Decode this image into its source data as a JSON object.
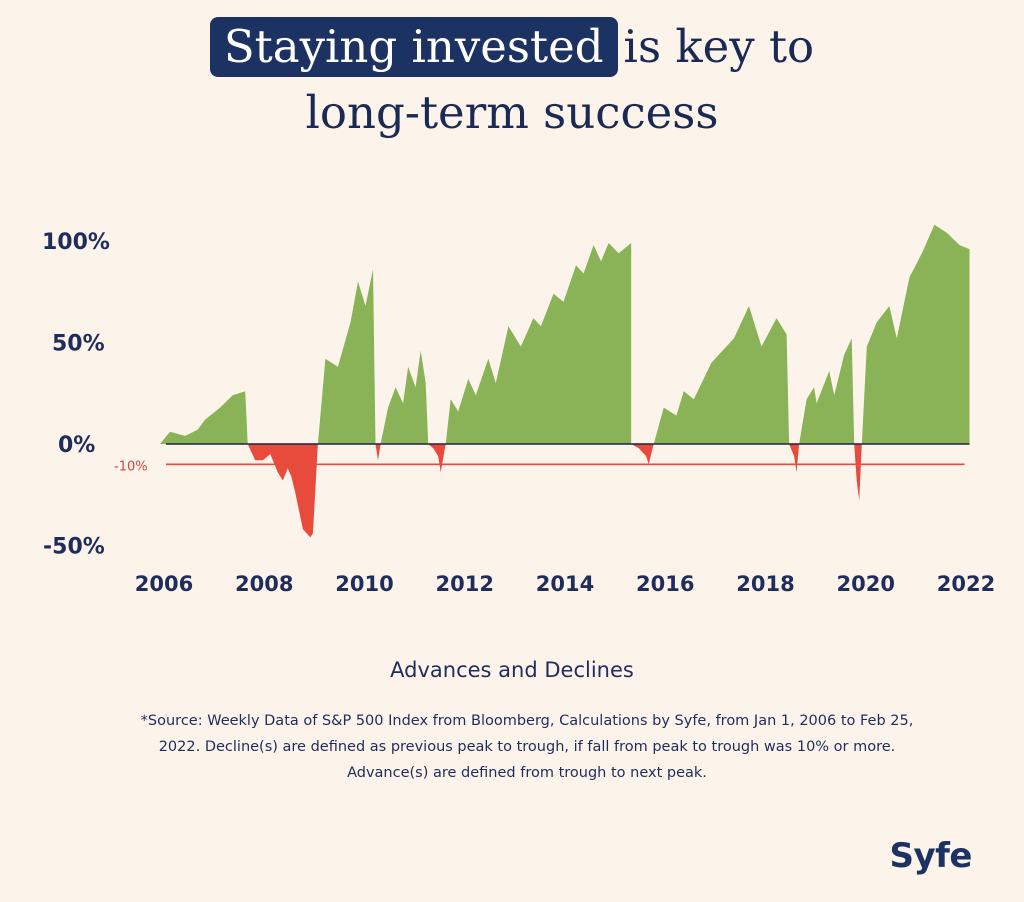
{
  "title": {
    "highlight": "Staying invested",
    "rest": "is key to",
    "line2": "long-term success"
  },
  "chart_data": {
    "type": "area",
    "title": "Staying invested is key to long-term success",
    "xlabel": "Advances and Declines",
    "ylabel": "",
    "xlim": [
      2006,
      2022
    ],
    "ylim": [
      -50,
      100
    ],
    "x_ticks": [
      "2006",
      "2008",
      "2010",
      "2012",
      "2014",
      "2016",
      "2018",
      "2020",
      "2022"
    ],
    "y_ticks": [
      "100%",
      "50%",
      "0%",
      "-50%"
    ],
    "reference_line": {
      "y": -10,
      "label": "-10%",
      "color": "#e84b3c"
    },
    "series": [
      {
        "name": "Advances",
        "color": "#89b356",
        "segments": [
          {
            "x": [
              2006.0,
              2006.2,
              2006.5,
              2006.75,
              2006.9,
              2007.2,
              2007.45,
              2007.7,
              2007.75
            ],
            "y": [
              0,
              6,
              4,
              7,
              12,
              18,
              24,
              26,
              0
            ]
          },
          {
            "x": [
              2009.15,
              2009.3,
              2009.55,
              2009.8,
              2009.95,
              2010.1,
              2010.25,
              2010.3
            ],
            "y": [
              0,
              42,
              38,
              60,
              80,
              68,
              86,
              0
            ]
          },
          {
            "x": [
              2010.4,
              2010.55,
              2010.7,
              2010.85,
              2010.95,
              2011.1,
              2011.2,
              2011.3,
              2011.35
            ],
            "y": [
              0,
              18,
              28,
              20,
              38,
              28,
              46,
              30,
              0
            ]
          },
          {
            "x": [
              2011.7,
              2011.8,
              2011.95,
              2012.15,
              2012.3,
              2012.55,
              2012.7,
              2012.95,
              2013.2,
              2013.45,
              2013.6,
              2013.85,
              2014.05,
              2014.3,
              2014.45,
              2014.65,
              2014.8,
              2014.95,
              2015.15,
              2015.4,
              2015.4
            ],
            "y": [
              0,
              22,
              16,
              32,
              24,
              42,
              30,
              58,
              48,
              62,
              58,
              74,
              70,
              88,
              84,
              98,
              90,
              99,
              94,
              99,
              0
            ]
          },
          {
            "x": [
              2015.85,
              2016.05,
              2016.3,
              2016.45,
              2016.65,
              2017.0,
              2017.45,
              2017.75,
              2018.0,
              2018.3,
              2018.5,
              2018.55
            ],
            "y": [
              0,
              18,
              14,
              26,
              22,
              40,
              52,
              68,
              48,
              62,
              54,
              0
            ]
          },
          {
            "x": [
              2018.75,
              2018.9,
              2019.05,
              2019.1,
              2019.35,
              2019.45,
              2019.65,
              2019.8,
              2019.85
            ],
            "y": [
              0,
              22,
              28,
              20,
              36,
              24,
              44,
              52,
              0
            ]
          },
          {
            "x": [
              2020.0,
              2020.1,
              2020.3,
              2020.55,
              2020.7,
              2020.95,
              2021.2,
              2021.45,
              2021.7,
              2021.95,
              2022.15,
              2022.15
            ],
            "y": [
              0,
              48,
              60,
              68,
              52,
              82,
              94,
              108,
              104,
              98,
              96,
              0
            ]
          }
        ]
      },
      {
        "name": "Declines",
        "color": "#e84b3c",
        "segments": [
          {
            "x": [
              2007.75,
              2007.9,
              2008.05,
              2008.2,
              2008.35,
              2008.45,
              2008.55,
              2008.62,
              2008.7,
              2008.85,
              2009.0,
              2009.05,
              2009.15
            ],
            "y": [
              0,
              -8,
              -8,
              -5,
              -14,
              -18,
              -12,
              -16,
              -24,
              -42,
              -46,
              -44,
              0
            ]
          },
          {
            "x": [
              2010.3,
              2010.35,
              2010.4
            ],
            "y": [
              0,
              -8,
              0
            ]
          },
          {
            "x": [
              2011.35,
              2011.45,
              2011.55,
              2011.6,
              2011.7
            ],
            "y": [
              0,
              -2,
              -6,
              -14,
              0
            ]
          },
          {
            "x": [
              2015.4,
              2015.55,
              2015.7,
              2015.75,
              2015.85
            ],
            "y": [
              0,
              -2,
              -6,
              -10,
              0
            ]
          },
          {
            "x": [
              2018.55,
              2018.65,
              2018.7,
              2018.75
            ],
            "y": [
              0,
              -6,
              -14,
              0
            ]
          },
          {
            "x": [
              2019.85,
              2019.9,
              2019.95,
              2020.0
            ],
            "y": [
              0,
              -18,
              -28,
              0
            ]
          }
        ]
      }
    ],
    "grid": false,
    "legend": "none"
  },
  "source_note": "*Source: Weekly Data of S&P 500 Index from Bloomberg, Calculations by Syfe, from Jan 1, 2006 to Feb 25, 2022. Decline(s) are defined as previous peak to trough, if fall from peak to trough was 10% or more. Advance(s) are defined from trough to next peak.",
  "logo": "Syfe",
  "colors": {
    "background": "#fcf3ea",
    "navy": "#1c3263",
    "advance": "#89b356",
    "decline": "#e84b3c",
    "zero_line": "#1c2540"
  }
}
